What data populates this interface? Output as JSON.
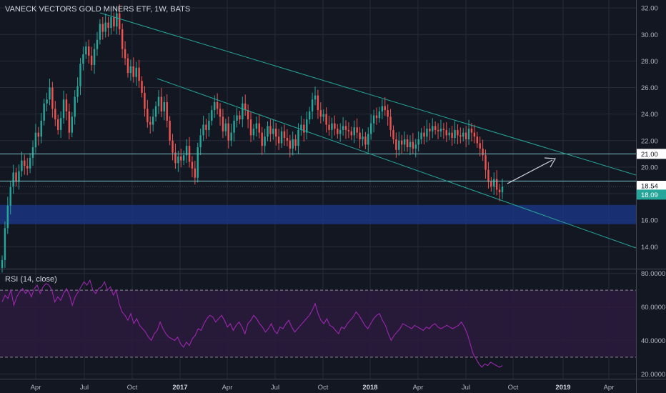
{
  "header": {
    "title": "VANECK VECTORS GOLD MINERS ETF, 1W, BATS"
  },
  "rsi_panel": {
    "label": "RSI (14, close)"
  },
  "colors": {
    "background": "#131722",
    "grid": "#262b38",
    "up_candle": "#26a69a",
    "down_candle": "#ef5350",
    "trend_line": "#26a69a",
    "horizontal_line": "#7bc4c4",
    "support_zone": "#1b3a8c",
    "rsi_line": "#9c27b0",
    "rsi_band": "#2c1a3c",
    "arrow": "#d1d4dc",
    "badge_last": "#26a69a",
    "badge_level": "#ffffff"
  },
  "chart_data": [
    {
      "type": "candlestick",
      "title": "VANECK VECTORS GOLD MINERS ETF, 1W, BATS",
      "y_ticks": [
        "32.00",
        "30.00",
        "28.00",
        "26.00",
        "24.00",
        "22.00",
        "20.00",
        "18.00",
        "16.00",
        "14.00"
      ],
      "ylim": [
        12.4,
        32.6
      ],
      "x_ticks": [
        "Apr",
        "Jul",
        "Oct",
        "2017",
        "Apr",
        "Jul",
        "Oct",
        "2018",
        "Apr",
        "Jul",
        "Oct",
        "2019",
        "Apr"
      ],
      "x_bold_ticks": [
        "2017",
        "2018",
        "2019"
      ],
      "series_close": [
        13.0,
        15.4,
        17.1,
        18.5,
        19.6,
        18.9,
        19.7,
        20.5,
        20.1,
        19.9,
        20.7,
        21.5,
        22.6,
        22.3,
        23.5,
        24.8,
        25.1,
        26.0,
        24.4,
        23.6,
        22.8,
        23.7,
        25.1,
        24.2,
        22.6,
        23.8,
        25.3,
        26.1,
        27.8,
        28.5,
        29.1,
        28.4,
        27.7,
        28.9,
        29.6,
        30.8,
        30.2,
        30.9,
        30.5,
        31.3,
        30.6,
        31.6,
        30.4,
        28.9,
        28.2,
        27.1,
        27.6,
        26.8,
        27.5,
        26.5,
        25.6,
        24.4,
        23.4,
        23.2,
        23.8,
        24.6,
        25.3,
        24.2,
        24.9,
        23.5,
        22.0,
        21.1,
        20.3,
        20.8,
        20.5,
        20.9,
        21.6,
        20.4,
        19.9,
        19.2,
        21.5,
        22.4,
        23.2,
        22.8,
        23.5,
        24.3,
        24.9,
        24.4,
        23.8,
        22.7,
        23.3,
        22.0,
        22.6,
        23.5,
        23.9,
        23.6,
        24.8,
        24.3,
        23.6,
        22.4,
        22.9,
        23.3,
        22.6,
        21.6,
        22.3,
        23.1,
        22.5,
        22.9,
        22.3,
        21.8,
        22.7,
        22.2,
        22.0,
        21.4,
        22.1,
        21.6,
        22.8,
        23.2,
        22.6,
        23.6,
        24.2,
        25.1,
        25.4,
        24.3,
        23.8,
        24.0,
        23.2,
        22.8,
        23.3,
        22.9,
        22.5,
        22.8,
        23.1,
        22.8,
        22.7,
        22.4,
        23.0,
        22.6,
        22.1,
        22.3,
        21.7,
        22.5,
        23.3,
        23.9,
        23.7,
        24.2,
        24.6,
        24.3,
        23.8,
        22.8,
        22.1,
        21.3,
        22.0,
        21.7,
        22.1,
        21.5,
        21.9,
        21.4,
        21.7,
        22.1,
        22.6,
        22.3,
        22.9,
        22.7,
        23.1,
        22.8,
        22.7,
        22.9,
        22.8,
        22.4,
        22.6,
        22.2,
        22.8,
        22.4,
        22.3,
        22.6,
        22.1,
        22.9,
        22.6,
        22.3,
        21.8,
        21.4,
        20.9,
        19.8,
        18.9,
        18.5,
        19.1,
        18.3,
        18.1,
        18.54
      ],
      "hlines": [
        21.0,
        18.54,
        18.09
      ],
      "support_zone": [
        15.7,
        17.15
      ],
      "badges": [
        {
          "value": "21.00",
          "style": "level"
        },
        {
          "value": "18.54",
          "style": "level-dark"
        },
        {
          "value": "18.09",
          "style": "last"
        }
      ]
    },
    {
      "type": "line",
      "title": "RSI (14, close)",
      "y_ticks": [
        "80.0000",
        "60.0000",
        "40.0000",
        "20.0000"
      ],
      "ylim": [
        18,
        82
      ],
      "band": [
        30,
        70
      ],
      "values": [
        63,
        67,
        65,
        70,
        61,
        66,
        69,
        71,
        68,
        70,
        66,
        71,
        73,
        68,
        72,
        74,
        73,
        70,
        63,
        66,
        64,
        68,
        71,
        67,
        61,
        66,
        69,
        72,
        75,
        73,
        76,
        70,
        68,
        71,
        72,
        75,
        70,
        72,
        67,
        70,
        62,
        57,
        55,
        52,
        56,
        50,
        53,
        49,
        47,
        45,
        42,
        40,
        44,
        46,
        51,
        47,
        44,
        42,
        41,
        40,
        42,
        38,
        36,
        39,
        37,
        41,
        43,
        47,
        46,
        50,
        53,
        55,
        54,
        51,
        53,
        55,
        52,
        48,
        50,
        46,
        49,
        51,
        48,
        44,
        50,
        52,
        55,
        53,
        50,
        48,
        45,
        47,
        50,
        46,
        44,
        48,
        47,
        50,
        52,
        48,
        45,
        47,
        49,
        51,
        53,
        55,
        58,
        62,
        56,
        52,
        50,
        53,
        49,
        48,
        46,
        44,
        48,
        47,
        50,
        52,
        54,
        57,
        55,
        52,
        49,
        47,
        50,
        53,
        55,
        56,
        52,
        49,
        44,
        40,
        43,
        45,
        47,
        50,
        49,
        48,
        47,
        49,
        48,
        47,
        46,
        48,
        47,
        49,
        50,
        48,
        47,
        48,
        49,
        48,
        47,
        48,
        49,
        51,
        48,
        44,
        38,
        32,
        29,
        26,
        24,
        26,
        25,
        27,
        26,
        25,
        24,
        25
      ]
    }
  ]
}
